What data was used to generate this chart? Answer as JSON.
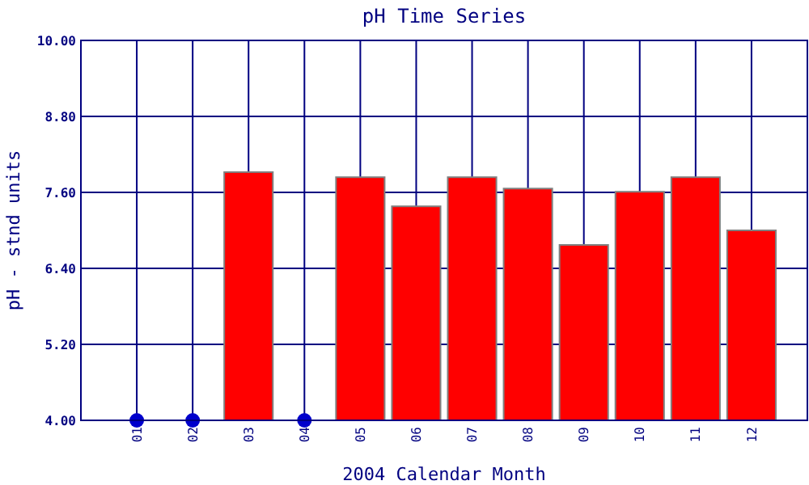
{
  "chart_data": {
    "type": "bar",
    "title": "pH Time Series",
    "xlabel": "2004 Calendar Month",
    "ylabel": "pH - stnd units",
    "categories": [
      "01",
      "02",
      "03",
      "04",
      "05",
      "06",
      "07",
      "08",
      "09",
      "10",
      "11",
      "12"
    ],
    "series": [
      {
        "color": "#ff0000",
        "values": [
          null,
          null,
          7.92,
          null,
          7.84,
          7.38,
          7.84,
          7.66,
          6.77,
          7.61,
          7.84,
          7.0
        ]
      },
      {
        "type": "scatter",
        "color": "#0000cc",
        "x": [
          "01",
          "02",
          "04"
        ],
        "values": [
          4,
          4,
          4
        ],
        "marker": "circle"
      }
    ],
    "ylim": [
      4,
      10
    ],
    "yticks": [
      {
        "value": 4,
        "label": "4.00"
      },
      {
        "value": 5.2,
        "label": "5.20"
      },
      {
        "value": 6.4,
        "label": "6.40"
      },
      {
        "value": 7.6,
        "label": "7.60"
      },
      {
        "value": 8.8,
        "label": "8.80"
      },
      {
        "value": 10,
        "label": "10.00"
      }
    ],
    "grid": true
  }
}
